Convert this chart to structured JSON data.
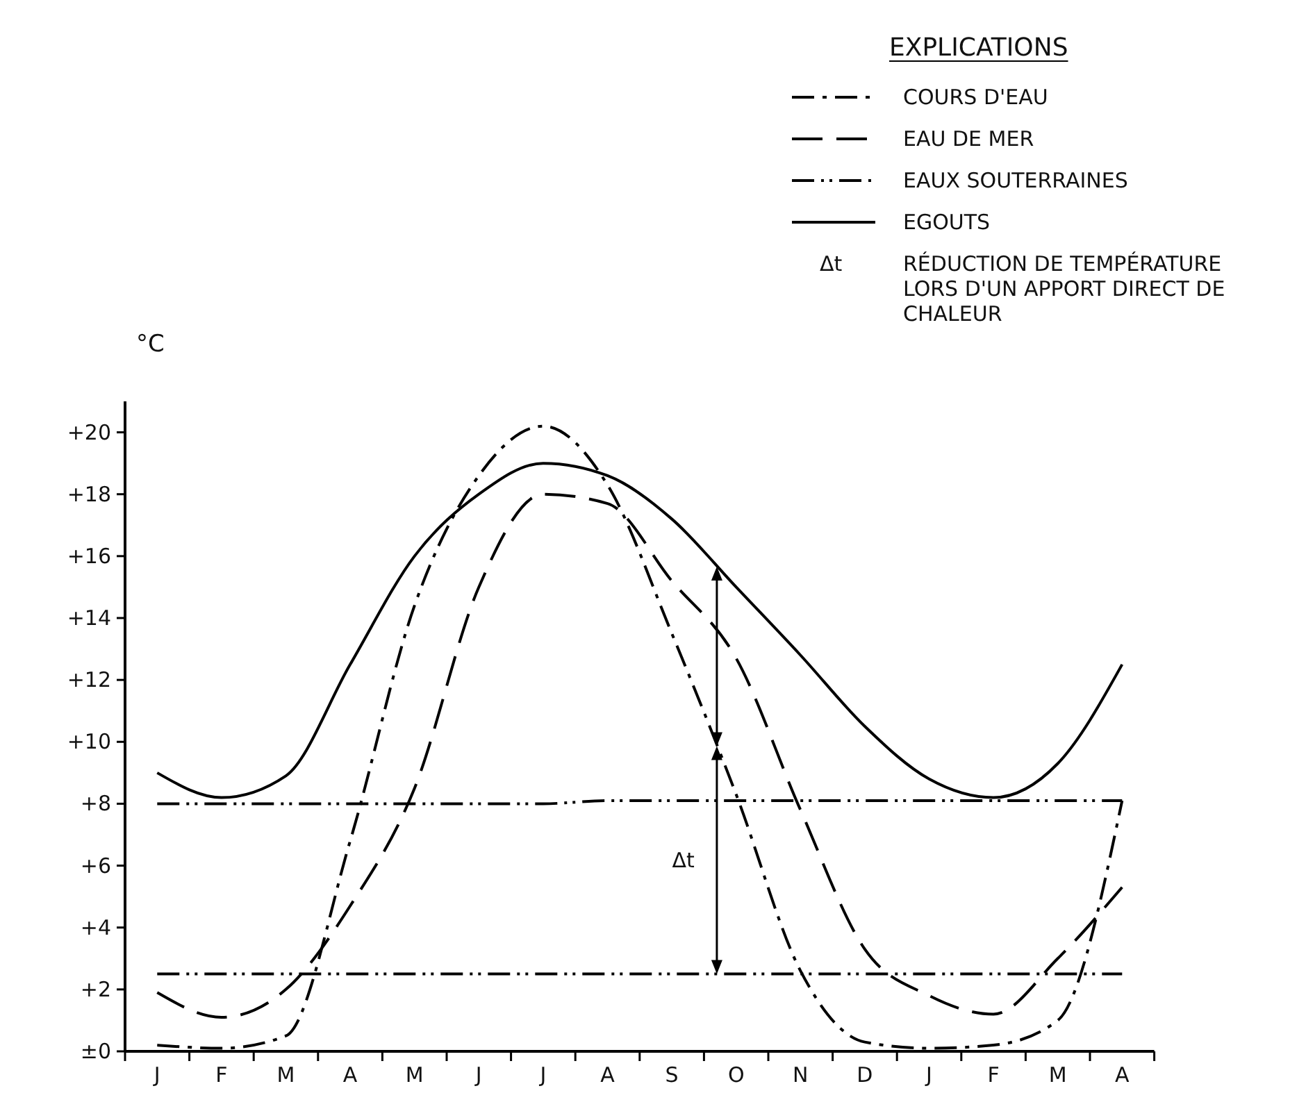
{
  "chart_data": {
    "type": "line",
    "ylabel": "°C",
    "legend_title": "EXPLICATIONS",
    "legend": "top right",
    "grid": false,
    "categories": [
      "J",
      "F",
      "M",
      "A",
      "M",
      "J",
      "J",
      "A",
      "S",
      "O",
      "N",
      "D",
      "J",
      "F",
      "M",
      "A"
    ],
    "ylim": [
      0,
      21
    ],
    "yticks": [
      {
        "value": 0,
        "label": "±0"
      },
      {
        "value": 2,
        "label": "+2"
      },
      {
        "value": 4,
        "label": "+4"
      },
      {
        "value": 6,
        "label": "+6"
      },
      {
        "value": 8,
        "label": "+8"
      },
      {
        "value": 10,
        "label": "+10"
      },
      {
        "value": 12,
        "label": "+12"
      },
      {
        "value": 14,
        "label": "+14"
      },
      {
        "value": 16,
        "label": "+16"
      },
      {
        "value": 18,
        "label": "+18"
      },
      {
        "value": 20,
        "label": "+20"
      }
    ],
    "series": [
      {
        "name": "COURS D'EAU",
        "color": "#000000",
        "line_style": "dashdot",
        "values": [
          0.2,
          0.1,
          0.5,
          6.8,
          14.4,
          18.6,
          20.2,
          18.3,
          13.5,
          8.3,
          2.6,
          0.3,
          0.1,
          0.2,
          1.0,
          8.1
        ]
      },
      {
        "name": "EAU DE MER",
        "color": "#000000",
        "line_style": "longdash",
        "values": [
          1.9,
          1.1,
          2.0,
          4.7,
          8.5,
          15.0,
          18.0,
          17.7,
          15.2,
          12.7,
          7.8,
          3.3,
          1.8,
          1.2,
          3.0,
          5.3
        ]
      },
      {
        "name": "EAUX SOUTERRAINES",
        "color": "#000000",
        "line_style": "dashdotdot",
        "values": [
          8.0,
          8.0,
          8.0,
          8.0,
          8.0,
          8.0,
          8.0,
          8.1,
          8.1,
          8.1,
          8.1,
          8.1,
          8.1,
          8.1,
          8.1,
          8.1
        ]
      },
      {
        "color": "#000000",
        "line_style": "dashdotdot",
        "values": [
          2.5,
          2.5,
          2.5,
          2.5,
          2.5,
          2.5,
          2.5,
          2.5,
          2.5,
          2.5,
          2.5,
          2.5,
          2.5,
          2.5,
          2.5,
          2.5
        ]
      },
      {
        "name": "EGOUTS",
        "color": "#000000",
        "line_style": "solid",
        "values": [
          9.0,
          8.2,
          8.9,
          12.5,
          16.0,
          18.0,
          19.0,
          18.6,
          17.2,
          15.0,
          12.8,
          10.5,
          8.8,
          8.2,
          9.3,
          12.5
        ]
      }
    ],
    "annotations": [
      "Δt",
      "Δt",
      "RÉDUCTION DE TEMPÉRATURE LORS D'UN APPORT DIRECT DE CHALEUR"
    ]
  }
}
